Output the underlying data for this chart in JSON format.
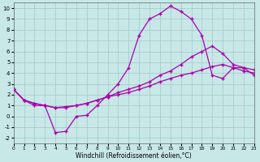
{
  "xlabel": "Windchill (Refroidissement éolien,°C)",
  "xlim": [
    0,
    23
  ],
  "ylim": [
    -2.5,
    10.5
  ],
  "xticks": [
    0,
    1,
    2,
    3,
    4,
    5,
    6,
    7,
    8,
    9,
    10,
    11,
    12,
    13,
    14,
    15,
    16,
    17,
    18,
    19,
    20,
    21,
    22,
    23
  ],
  "yticks": [
    -2,
    -1,
    0,
    1,
    2,
    3,
    4,
    5,
    6,
    7,
    8,
    9,
    10
  ],
  "bg_color": "#c8e8e8",
  "grid_color": "#a0c8c8",
  "line_color": "#aa00aa",
  "line1_x": [
    0,
    1,
    2,
    3,
    4,
    5,
    6,
    7,
    8,
    9,
    10,
    11,
    12,
    13,
    14,
    15,
    16,
    17,
    18,
    19,
    20,
    21,
    22,
    23
  ],
  "line1_y": [
    2.5,
    1.5,
    1.0,
    1.0,
    -1.5,
    -1.4,
    0.0,
    0.1,
    1.0,
    2.0,
    3.0,
    4.5,
    7.5,
    9.0,
    9.5,
    10.2,
    9.7,
    9.0,
    7.5,
    3.8,
    3.5,
    4.5,
    4.5,
    3.8
  ],
  "line2_x": [
    0,
    1,
    2,
    3,
    4,
    5,
    6,
    7,
    8,
    9,
    10,
    11,
    12,
    13,
    14,
    15,
    16,
    17,
    18,
    19,
    20,
    21,
    22,
    23
  ],
  "line2_y": [
    2.5,
    1.5,
    1.2,
    1.0,
    0.8,
    0.8,
    1.0,
    1.2,
    1.5,
    1.8,
    2.2,
    2.5,
    2.8,
    3.2,
    3.8,
    4.2,
    4.8,
    5.5,
    6.0,
    6.5,
    5.8,
    4.8,
    4.5,
    4.3
  ],
  "line3_x": [
    0,
    1,
    2,
    3,
    4,
    5,
    6,
    7,
    8,
    9,
    10,
    11,
    12,
    13,
    14,
    15,
    16,
    17,
    18,
    19,
    20,
    21,
    22,
    23
  ],
  "line3_y": [
    2.5,
    1.5,
    1.2,
    1.0,
    0.8,
    0.9,
    1.0,
    1.2,
    1.5,
    1.8,
    2.0,
    2.2,
    2.5,
    2.8,
    3.2,
    3.5,
    3.8,
    4.0,
    4.3,
    4.6,
    4.8,
    4.5,
    4.2,
    4.0
  ]
}
